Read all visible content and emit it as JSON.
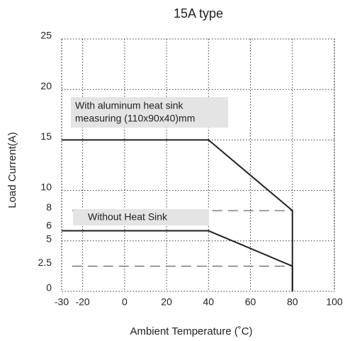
{
  "chart_data": {
    "type": "line",
    "title": "15A type",
    "x_label": "Ambient Temperature (˚C)",
    "y_label": "Load  Current(A)",
    "xlim": [
      -30,
      100
    ],
    "xticks": [
      -30,
      -20,
      0,
      20,
      40,
      60,
      80,
      100
    ],
    "ylim": [
      0,
      25
    ],
    "yticks": [
      0,
      2.5,
      5,
      6,
      8,
      10,
      15,
      20,
      25
    ],
    "grid_values": [
      5,
      10,
      15,
      20,
      25
    ],
    "grid": true,
    "series": [
      {
        "name": "With aluminum heat sink measuring (110x90x40)mm",
        "color": "#222222",
        "x": [
          -30,
          40,
          80,
          80
        ],
        "values": [
          15,
          15,
          8,
          0
        ]
      },
      {
        "name": "Without Heat Sink",
        "color": "#222222",
        "x": [
          -30,
          40,
          80,
          80
        ],
        "values": [
          6,
          6,
          2.5,
          0
        ]
      }
    ],
    "reference_lines": [
      8,
      2.5
    ],
    "annotations": [
      "With aluminum heat sink",
      "measuring (110x90x40)mm",
      "Without Heat Sink"
    ]
  }
}
